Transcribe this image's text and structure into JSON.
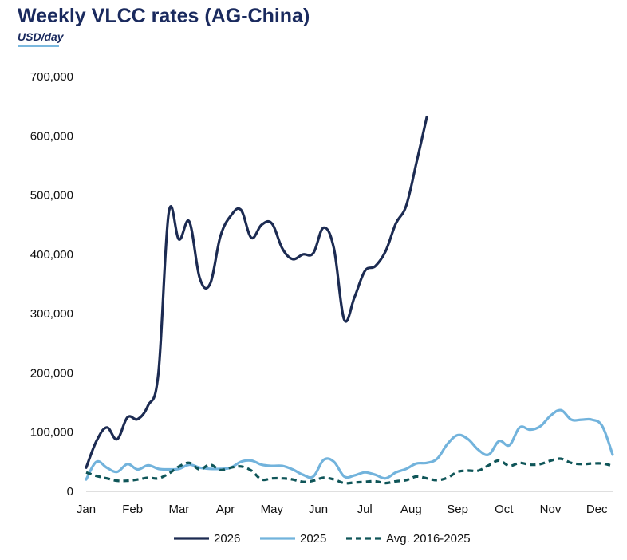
{
  "header": {
    "title": "Weekly VLCC rates (AG-China)",
    "subtitle": "USD/day"
  },
  "colors": {
    "s2026": "#1c2b52",
    "s2025": "#72b3dc",
    "avg": "#0f5558",
    "title": "#1a2a5e"
  },
  "chart_data": {
    "type": "line",
    "title": "Weekly VLCC rates (AG-China)",
    "subtitle": "USD/day",
    "xlabel": "",
    "ylabel": "",
    "ylim": [
      0,
      700000
    ],
    "xlim": [
      1,
      52
    ],
    "yticks": [
      0,
      100000,
      200000,
      300000,
      400000,
      500000,
      600000,
      700000
    ],
    "ytick_labels": [
      "0",
      "100,000",
      "200,000",
      "300,000",
      "400,000",
      "500,000",
      "600,000",
      "700,000"
    ],
    "xtick_labels": [
      "Jan",
      "Feb",
      "Mar",
      "Apr",
      "May",
      "Jun",
      "Jul",
      "Aug",
      "Sep",
      "Oct",
      "Nov",
      "Dec"
    ],
    "grid": false,
    "legend_position": "bottom-center",
    "series": [
      {
        "name": "2026",
        "style": "solid",
        "color": "#1c2b52",
        "x": [
          1,
          2,
          3,
          4,
          5,
          6,
          7,
          8,
          9,
          10,
          11,
          12,
          13,
          14,
          15,
          16,
          17,
          18,
          19,
          20,
          21,
          22,
          23,
          24,
          25,
          26,
          27,
          28,
          29,
          30,
          31,
          32,
          33,
          34,
          35,
          36
        ],
        "y": [
          40000,
          85000,
          108000,
          88000,
          125000,
          122000,
          145000,
          200000,
          470000,
          425000,
          455000,
          360000,
          350000,
          430000,
          465000,
          475000,
          428000,
          450000,
          452000,
          410000,
          392000,
          400000,
          402000,
          445000,
          410000,
          290000,
          328000,
          372000,
          380000,
          405000,
          452000,
          482000,
          555000,
          632000,
          null,
          null
        ]
      },
      {
        "name": "2025",
        "style": "solid",
        "color": "#72b3dc",
        "x": [
          1,
          2,
          3,
          4,
          5,
          6,
          7,
          8,
          9,
          10,
          11,
          12,
          13,
          14,
          15,
          16,
          17,
          18,
          19,
          20,
          21,
          22,
          23,
          24,
          25,
          26,
          27,
          28,
          29,
          30,
          31,
          32,
          33,
          34,
          35,
          36,
          37,
          38,
          39,
          40,
          41,
          42,
          43,
          44,
          45,
          46,
          47,
          48,
          49,
          50,
          51,
          52
        ],
        "y": [
          20000,
          50000,
          40000,
          33000,
          46000,
          37000,
          44000,
          38000,
          37000,
          38000,
          45000,
          40000,
          38000,
          38000,
          40000,
          50000,
          52000,
          45000,
          43000,
          43000,
          37000,
          28000,
          25000,
          53000,
          50000,
          25000,
          27000,
          32000,
          28000,
          22000,
          32000,
          38000,
          47000,
          48000,
          55000,
          80000,
          95000,
          88000,
          70000,
          62000,
          85000,
          78000,
          108000,
          104000,
          110000,
          128000,
          137000,
          121000,
          121000,
          121000,
          110000,
          62000
        ]
      },
      {
        "name": "Avg. 2016-2025",
        "style": "dashed",
        "color": "#0f5558",
        "x": [
          1,
          2,
          3,
          4,
          5,
          6,
          7,
          8,
          9,
          10,
          11,
          12,
          13,
          14,
          15,
          16,
          17,
          18,
          19,
          20,
          21,
          22,
          23,
          24,
          25,
          26,
          27,
          28,
          29,
          30,
          31,
          32,
          33,
          34,
          35,
          36,
          37,
          38,
          39,
          40,
          41,
          42,
          43,
          44,
          45,
          46,
          47,
          48,
          49,
          50,
          51,
          52
        ],
        "y": [
          32000,
          26000,
          22000,
          18000,
          18000,
          20000,
          23000,
          22000,
          30000,
          42000,
          48000,
          37000,
          45000,
          36000,
          40000,
          42000,
          35000,
          20000,
          22000,
          22000,
          20000,
          16000,
          18000,
          23000,
          20000,
          14000,
          15000,
          16000,
          17000,
          14000,
          17000,
          19000,
          25000,
          22000,
          19000,
          23000,
          33000,
          35000,
          35000,
          44000,
          52000,
          43000,
          48000,
          45000,
          46000,
          52000,
          55000,
          48000,
          46000,
          47000,
          47000,
          43000
        ]
      }
    ]
  }
}
